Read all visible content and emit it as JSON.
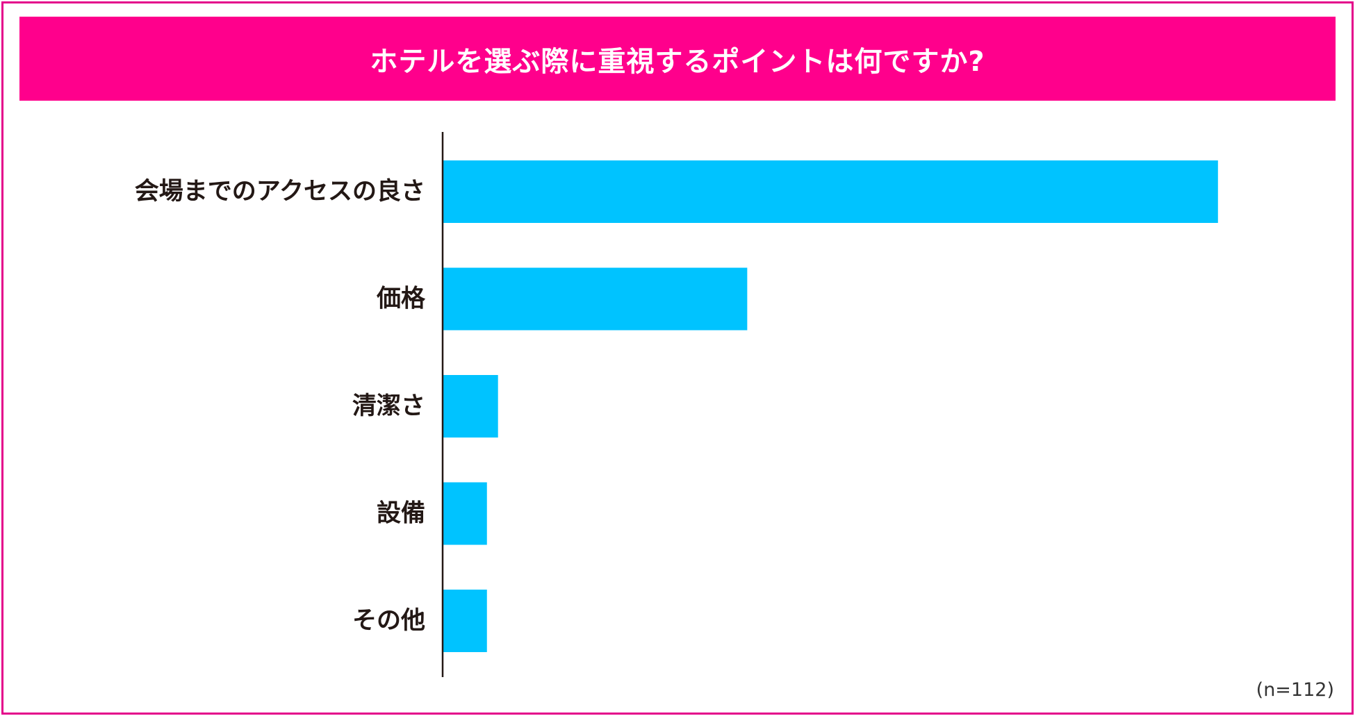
{
  "colors": {
    "frame": "#e4008a",
    "banner": "#ff008c",
    "bar": "#00c3ff",
    "axis": "#231815",
    "label": "#231815"
  },
  "chart_data": {
    "type": "bar",
    "orientation": "horizontal",
    "title": "ホテルを選ぶ際に重視するポイントは何ですか?",
    "categories": [
      "会場までのアクセスの良さ",
      "価格",
      "清潔さ",
      "設備",
      "その他"
    ],
    "values": [
      70,
      27.5,
      5,
      4,
      4
    ],
    "value_unit": "relative (no axis scale shown)",
    "xlim": [
      0,
      100
    ],
    "grid": false,
    "legend": "none",
    "note": "(n=112)"
  }
}
